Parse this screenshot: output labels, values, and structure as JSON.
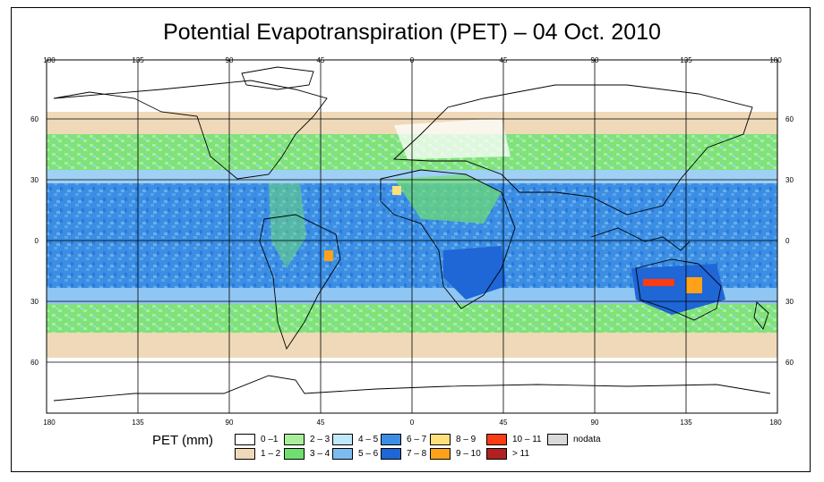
{
  "title": "Potential Evapotranspiration (PET) – 04 Oct. 2010",
  "axes": {
    "lon_labels": [
      "180",
      "135",
      "90",
      "45",
      "0",
      "45",
      "90",
      "135",
      "180"
    ],
    "lat_labels": [
      "60",
      "30",
      "0",
      "30",
      "60"
    ]
  },
  "legend": {
    "title": "PET (mm)",
    "items": [
      {
        "label": "0 –1",
        "color": "#ffffff"
      },
      {
        "label": "1 – 2",
        "color": "#efd9b8"
      },
      {
        "label": "2 – 3",
        "color": "#a8ef9c"
      },
      {
        "label": "3 – 4",
        "color": "#6fe06f"
      },
      {
        "label": "4 – 5",
        "color": "#bfe8fb"
      },
      {
        "label": "5 – 6",
        "color": "#7dbcf3"
      },
      {
        "label": "6 – 7",
        "color": "#3b8ee3"
      },
      {
        "label": "7 – 8",
        "color": "#1f66d6"
      },
      {
        "label": "8 – 9",
        "color": "#ffe07a"
      },
      {
        "label": "9 – 10",
        "color": "#ffa219"
      },
      {
        "label": "10 – 11",
        "color": "#ff3b14"
      },
      {
        "label": "> 11",
        "color": "#b02222"
      },
      {
        "label": "nodata",
        "color": "#d9d9d9"
      }
    ]
  }
}
